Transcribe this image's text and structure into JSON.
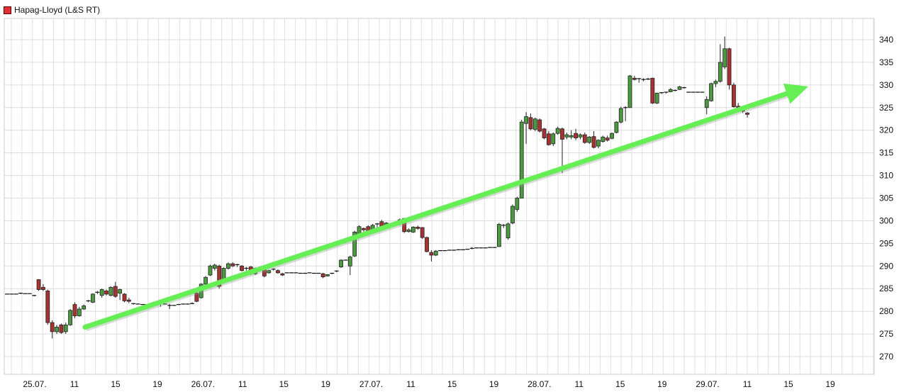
{
  "chart_data": {
    "type": "candlestick",
    "title": "",
    "legend": [
      {
        "name": "Hapag-Lloyd (L&S RT)",
        "color": "#e03030",
        "position": "top-left"
      }
    ],
    "xlabel": "",
    "ylabel": "",
    "ylim": [
      270,
      340
    ],
    "y_ticks": [
      "340",
      "335",
      "330",
      "325",
      "320",
      "315",
      "310",
      "305",
      "300",
      "295",
      "290",
      "285",
      "280",
      "275",
      "270"
    ],
    "x_ticks": [
      "25.07.",
      "11",
      "15",
      "19",
      "26.07.",
      "11",
      "15",
      "19",
      "27.07.",
      "11",
      "15",
      "19",
      "28.07.",
      "11",
      "15",
      "19",
      "29.07.",
      "11",
      "15",
      "19"
    ],
    "grid": true,
    "colors": {
      "up": "#4c9a3f",
      "down": "#a83232",
      "trend_arrow": "#66ee55"
    },
    "annotations": [
      {
        "type": "arrow",
        "from_value": 276.5,
        "to_value": 328.5,
        "color": "#66ee55"
      }
    ],
    "candles_ohlc": [
      [
        283.8,
        283.8,
        283.8,
        283.8
      ],
      [
        283.8,
        283.8,
        283.8,
        283.8
      ],
      [
        283.8,
        283.8,
        283.8,
        283.8
      ],
      [
        284,
        284.1,
        283.8,
        284
      ],
      [
        283.9,
        283.9,
        283.9,
        283.9
      ],
      [
        283.9,
        283.9,
        283.9,
        283.9
      ],
      [
        283.5,
        283.6,
        283.3,
        283.4
      ],
      [
        287,
        287,
        284.5,
        284.8
      ],
      [
        285.3,
        286,
        284.5,
        284.8
      ],
      [
        284.5,
        284.8,
        277,
        277.5
      ],
      [
        277.5,
        278,
        274,
        275.5
      ],
      [
        275.5,
        277,
        275,
        276.5
      ],
      [
        277,
        277.3,
        275,
        275.3
      ],
      [
        275.5,
        277.5,
        275,
        277
      ],
      [
        277,
        280.5,
        276.8,
        280.2
      ],
      [
        281.5,
        282,
        278.5,
        279
      ],
      [
        279,
        281,
        278.8,
        280.5
      ],
      [
        280.5,
        281.5,
        280.3,
        281.2
      ],
      [
        282.3,
        282.5,
        282,
        282.2
      ],
      [
        282,
        284,
        281.8,
        283.8
      ],
      [
        284,
        284.5,
        283.8,
        284.2
      ],
      [
        283.5,
        285,
        283,
        284.8
      ],
      [
        284.5,
        284.8,
        283.5,
        283.8
      ],
      [
        283.5,
        285.5,
        283.3,
        285.3
      ],
      [
        285.5,
        286.5,
        283,
        283.3
      ],
      [
        284,
        285,
        282.5,
        284.8
      ],
      [
        283.8,
        284,
        282,
        282.3
      ],
      [
        282.5,
        283,
        281.8,
        282.2
      ],
      [
        281.7,
        281.8,
        281.5,
        281.6
      ],
      [
        281.6,
        281.7,
        281.5,
        281.6
      ],
      [
        281.5,
        281.6,
        281.4,
        281.5
      ],
      [
        281.5,
        281.6,
        281.4,
        281.5
      ],
      [
        281.6,
        281.7,
        281.5,
        281.6
      ],
      [
        281.5,
        281.6,
        281.4,
        281.5
      ],
      [
        281.6,
        282,
        281,
        281.7
      ],
      [
        281.6,
        281.7,
        281.5,
        281.6
      ],
      [
        281.3,
        281.6,
        280.5,
        281.2
      ],
      [
        281.3,
        281.4,
        281.2,
        281.3
      ],
      [
        281.5,
        281.6,
        281.4,
        281.5
      ],
      [
        281.6,
        281.7,
        281.5,
        281.6
      ],
      [
        281.6,
        281.7,
        281.5,
        281.6
      ],
      [
        281.7,
        282,
        281.6,
        281.7
      ],
      [
        284,
        284.2,
        282,
        282.2
      ],
      [
        283,
        286.2,
        282.8,
        286
      ],
      [
        286,
        287.8,
        285.8,
        287.5
      ],
      [
        288,
        290.3,
        287.8,
        290
      ],
      [
        289.5,
        290.5,
        289,
        290.2
      ],
      [
        290,
        290.3,
        285,
        285.5
      ],
      [
        287,
        289.7,
        286.8,
        289.5
      ],
      [
        289.5,
        290.8,
        289.2,
        290.5
      ],
      [
        290.5,
        290.8,
        289.8,
        290
      ],
      [
        290.2,
        290.5,
        289.8,
        290.3
      ],
      [
        290,
        290.2,
        288.8,
        289
      ],
      [
        289.3,
        289.8,
        289,
        289.5
      ],
      [
        289.8,
        290,
        288,
        288.5
      ],
      [
        288.3,
        289.7,
        288,
        289.5
      ],
      [
        289.3,
        289.7,
        289,
        289.5
      ],
      [
        289.5,
        289.8,
        287.5,
        287.8
      ],
      [
        288.5,
        289.2,
        288.3,
        289
      ],
      [
        289.2,
        289.5,
        289,
        289.3
      ],
      [
        289,
        289.3,
        288.3,
        288.5
      ],
      [
        288.3,
        288.5,
        287.8,
        288
      ],
      [
        288.5,
        288.6,
        288.4,
        288.5
      ],
      [
        288.5,
        288.6,
        288.4,
        288.5
      ],
      [
        288.5,
        288.6,
        288.4,
        288.5
      ],
      [
        288.4,
        288.5,
        288.3,
        288.4
      ],
      [
        288.4,
        288.5,
        288.3,
        288.4
      ],
      [
        288.5,
        288.6,
        288.4,
        288.5
      ],
      [
        288.4,
        288.5,
        288.3,
        288.4
      ],
      [
        288.4,
        288.5,
        288.3,
        288.4
      ],
      [
        288.3,
        288.5,
        287.3,
        287.6
      ],
      [
        287.8,
        288.2,
        287.7,
        288.1
      ],
      [
        288.3,
        288.5,
        288.2,
        288.4
      ],
      [
        288.8,
        289,
        288.6,
        288.9
      ],
      [
        289.8,
        291.5,
        289.6,
        291.3
      ],
      [
        291.3,
        291.4,
        291.2,
        291.3
      ],
      [
        290,
        292.3,
        288,
        292
      ],
      [
        292.2,
        297.8,
        292,
        297.5
      ],
      [
        296.5,
        299,
        296.3,
        298.7
      ],
      [
        298.3,
        298.5,
        297.6,
        298
      ],
      [
        298.7,
        299,
        297,
        297.3
      ],
      [
        297.6,
        299.3,
        297.4,
        299
      ],
      [
        299.2,
        299.5,
        298.5,
        299.3
      ],
      [
        299.8,
        300.2,
        298.3,
        298.6
      ],
      [
        299,
        299.7,
        298.8,
        299.5
      ],
      [
        299.3,
        299.4,
        299.2,
        299.3
      ],
      [
        299.3,
        299.4,
        299.2,
        299.3
      ],
      [
        299.3,
        300.5,
        299,
        300.2
      ],
      [
        300.5,
        300.6,
        297.3,
        297.6
      ],
      [
        297.6,
        298.3,
        297.4,
        298
      ],
      [
        297.5,
        298.8,
        297.3,
        298.6
      ],
      [
        298.6,
        298.9,
        298,
        298.3
      ],
      [
        298.5,
        298.6,
        296,
        296.3
      ],
      [
        296.3,
        296.5,
        293,
        293.2
      ],
      [
        293,
        293.5,
        291,
        292.4
      ],
      [
        292.4,
        293.5,
        292.2,
        293.3
      ],
      [
        293.4,
        293.5,
        293.3,
        293.4
      ],
      [
        293.4,
        293.5,
        293.3,
        293.4
      ],
      [
        293.5,
        293.6,
        293.4,
        293.5
      ],
      [
        293.5,
        293.6,
        293.4,
        293.5
      ],
      [
        293.6,
        293.7,
        293.5,
        293.6
      ],
      [
        293.6,
        293.7,
        293.5,
        293.6
      ],
      [
        293.7,
        293.8,
        293.6,
        293.7
      ],
      [
        293.8,
        294.2,
        293.7,
        293.9
      ],
      [
        294,
        294.1,
        293.9,
        294
      ],
      [
        294,
        294.1,
        293.9,
        294
      ],
      [
        294,
        294.1,
        293.9,
        294
      ],
      [
        294.1,
        294.2,
        294,
        294.1
      ],
      [
        294.1,
        294.2,
        294,
        294.1
      ],
      [
        294.3,
        299.5,
        294.2,
        299.2
      ],
      [
        298.8,
        299.3,
        298.4,
        299
      ],
      [
        296.2,
        299.6,
        295.8,
        299.3
      ],
      [
        299.5,
        303.6,
        299.2,
        303.2
      ],
      [
        302.5,
        305.3,
        302,
        305
      ],
      [
        305,
        322.3,
        305,
        321.8
      ],
      [
        321.5,
        324,
        317,
        323
      ],
      [
        322.8,
        323.7,
        320,
        320.3
      ],
      [
        320.2,
        322.8,
        319.8,
        322.5
      ],
      [
        322.3,
        322.6,
        319.5,
        319.8
      ],
      [
        320.3,
        320.5,
        318,
        318.3
      ],
      [
        319.2,
        319.8,
        316.6,
        316.8
      ],
      [
        317,
        319.5,
        316.5,
        319.2
      ],
      [
        319.3,
        320.8,
        319,
        320.4
      ],
      [
        320.3,
        320.6,
        310.5,
        318
      ],
      [
        318.5,
        319.5,
        318,
        319
      ],
      [
        318.5,
        320,
        318,
        318.8
      ],
      [
        319.3,
        320.3,
        317.8,
        318.3
      ],
      [
        318.5,
        319.3,
        318,
        319
      ],
      [
        319,
        319.5,
        317,
        317.3
      ],
      [
        317.3,
        318.7,
        317,
        318.5
      ],
      [
        318.6,
        319.8,
        316,
        316.2
      ],
      [
        316.5,
        318,
        316,
        317.8
      ],
      [
        317.5,
        318.8,
        317.3,
        318.5
      ],
      [
        318.3,
        318.8,
        317.5,
        317.8
      ],
      [
        318.2,
        319.5,
        318,
        319.3
      ],
      [
        319.5,
        322,
        319.3,
        321.8
      ],
      [
        321.8,
        325.2,
        321.5,
        324.8
      ],
      [
        324.8,
        325.3,
        322,
        325
      ],
      [
        325,
        332.2,
        325,
        332
      ],
      [
        331.5,
        332,
        331,
        331.2
      ],
      [
        331.2,
        331.5,
        330.5,
        331.4
      ],
      [
        331.2,
        331.5,
        330.8,
        331
      ],
      [
        331.2,
        331.6,
        331.1,
        331.3
      ],
      [
        331.5,
        331.6,
        325.8,
        326
      ],
      [
        326,
        328.3,
        325.8,
        328.2
      ],
      [
        328.2,
        328.4,
        328,
        328.3
      ],
      [
        328.4,
        328.5,
        328.1,
        328.3
      ],
      [
        328.5,
        329.3,
        328.4,
        329
      ],
      [
        328.8,
        329,
        328.6,
        328.8
      ],
      [
        329,
        329.8,
        328.9,
        329.6
      ],
      [
        329.3,
        329.6,
        329.2,
        329.4
      ],
      [
        328.4,
        328.5,
        328.3,
        328.4
      ],
      [
        328.4,
        328.5,
        328.3,
        328.4
      ],
      [
        328.4,
        328.5,
        328.3,
        328.4
      ],
      [
        328.4,
        328.5,
        328.3,
        328.4
      ],
      [
        325,
        327.5,
        323.5,
        326.8
      ],
      [
        326.5,
        330.5,
        326.3,
        330.3
      ],
      [
        330.3,
        331.2,
        329.5,
        330.8
      ],
      [
        330.8,
        339,
        330.5,
        335
      ],
      [
        334,
        340.7,
        333.5,
        338
      ],
      [
        338,
        338.2,
        329,
        330
      ],
      [
        330,
        330.5,
        325,
        325.2
      ],
      [
        325.3,
        326,
        324,
        325
      ],
      [
        325,
        325.3,
        323.8,
        324.2
      ],
      [
        323.8,
        324,
        322.8,
        323.5
      ]
    ]
  }
}
